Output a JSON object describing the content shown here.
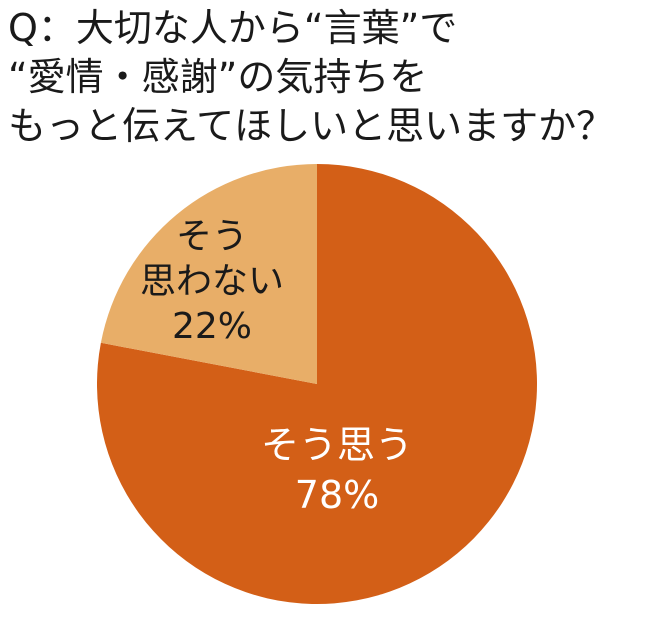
{
  "chart_data": {
    "type": "pie",
    "title_lines": [
      "Q：大切な人から“言葉”で",
      "“愛情・感謝”の気持ちを",
      "もっと伝えてほしいと思いますか？"
    ],
    "slices": [
      {
        "label_lines": [
          "そう思う",
          "78%"
        ],
        "value": 78,
        "color": "#D35F17"
      },
      {
        "label_lines": [
          "そう",
          "思わない",
          "22%"
        ],
        "value": 22,
        "color": "#E8AE68"
      }
    ],
    "start": "12 o'clock",
    "direction": "clockwise"
  }
}
